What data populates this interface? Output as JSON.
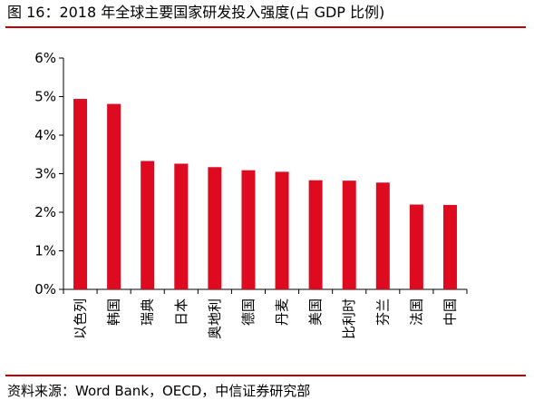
{
  "title": "图 16：2018 年全球主要国家研发投入强度(占 GDP 比例)",
  "source": "资料来源：Word Bank，OECD，中信证券研究部",
  "chart_data": {
    "type": "bar",
    "title": "图 16：2018 年全球主要国家研发投入强度(占 GDP 比例)",
    "categories": [
      "以色列",
      "韩国",
      "瑞典",
      "日本",
      "奥地利",
      "德国",
      "丹麦",
      "美国",
      "比利时",
      "芬兰",
      "法国",
      "中国"
    ],
    "values": [
      4.94,
      4.81,
      3.33,
      3.26,
      3.17,
      3.09,
      3.05,
      2.83,
      2.82,
      2.77,
      2.2,
      2.19
    ],
    "y_ticks": [
      "0%",
      "1%",
      "2%",
      "3%",
      "4%",
      "5%",
      "6%"
    ],
    "ylim": [
      0,
      6
    ],
    "xlabel": "",
    "ylabel": "",
    "grid": false,
    "legend": "none",
    "bar_color": "#dd0a20",
    "accent_color": "#c00000"
  }
}
